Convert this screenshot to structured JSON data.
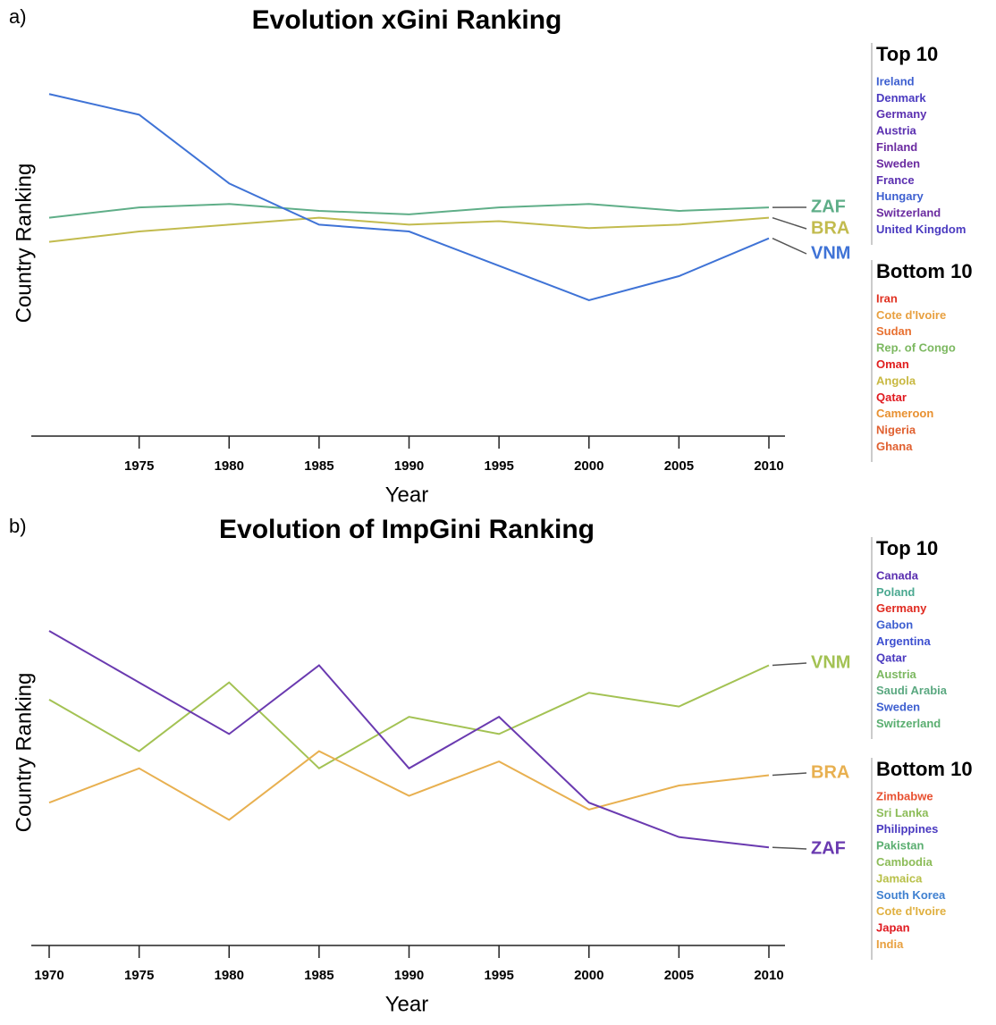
{
  "chart_data": [
    {
      "type": "line",
      "panel": "a)",
      "title": "Evolution xGini Ranking",
      "x_label": "Year",
      "y_label": "Country Ranking",
      "x": [
        1970,
        1975,
        1980,
        1985,
        1990,
        1995,
        2000,
        2005,
        2010
      ],
      "xlim": [
        1970,
        2010
      ],
      "xticks": [
        1975,
        1980,
        1985,
        1990,
        1995,
        2000,
        2005,
        2010
      ],
      "ylim": [
        110,
        1
      ],
      "series": [
        {
          "name": "ZAF",
          "color": "#5fae88",
          "values": [
            48,
            45,
            44,
            46,
            47,
            45,
            44,
            46,
            45
          ]
        },
        {
          "name": "BRA",
          "color": "#c2bb4e",
          "values": [
            55,
            52,
            50,
            48,
            50,
            49,
            51,
            50,
            48
          ]
        },
        {
          "name": "VNM",
          "color": "#3f73d6",
          "values": [
            12,
            18,
            38,
            50,
            52,
            62,
            72,
            65,
            54
          ]
        }
      ],
      "legend": [
        {
          "title": "Top 10",
          "items": [
            {
              "name": "Ireland",
              "color": "#3d5fd0"
            },
            {
              "name": "Denmark",
              "color": "#4a3ac0"
            },
            {
              "name": "Germany",
              "color": "#5a2fb0"
            },
            {
              "name": "Austria",
              "color": "#5a2fb0"
            },
            {
              "name": "Finland",
              "color": "#6a2aa0"
            },
            {
              "name": "Sweden",
              "color": "#6a2aa0"
            },
            {
              "name": "France",
              "color": "#5a2fb0"
            },
            {
              "name": "Hungary",
              "color": "#3d5fd0"
            },
            {
              "name": "Switzerland",
              "color": "#6a2aa0"
            },
            {
              "name": "United Kingdom",
              "color": "#4a3ac0"
            }
          ]
        },
        {
          "title": "Bottom 10",
          "items": [
            {
              "name": "Iran",
              "color": "#e03020"
            },
            {
              "name": "Cote d'Ivoire",
              "color": "#e8a040"
            },
            {
              "name": "Sudan",
              "color": "#e87030"
            },
            {
              "name": "Rep. of Congo",
              "color": "#7cb860"
            },
            {
              "name": "Oman",
              "color": "#e02020"
            },
            {
              "name": "Angola",
              "color": "#c8b840"
            },
            {
              "name": "Qatar",
              "color": "#e01a20"
            },
            {
              "name": "Cameroon",
              "color": "#e89030"
            },
            {
              "name": "Nigeria",
              "color": "#e06030"
            },
            {
              "name": "Ghana",
              "color": "#e06030"
            }
          ]
        }
      ]
    },
    {
      "type": "line",
      "panel": "b)",
      "title": "Evolution of ImpGini Ranking",
      "x_label": "Year",
      "y_label": "Country Ranking",
      "x": [
        1970,
        1975,
        1980,
        1985,
        1990,
        1995,
        2000,
        2005,
        2010
      ],
      "xlim": [
        1970,
        2010
      ],
      "xticks": [
        1970,
        1975,
        1980,
        1985,
        1990,
        1995,
        2000,
        2005,
        2010
      ],
      "ylim": [
        110,
        1
      ],
      "series": [
        {
          "name": "VNM",
          "color": "#a3c253",
          "values": [
            40,
            55,
            35,
            60,
            45,
            50,
            38,
            42,
            30
          ]
        },
        {
          "name": "BRA",
          "color": "#e8b050",
          "values": [
            70,
            60,
            75,
            55,
            68,
            58,
            72,
            65,
            62
          ]
        },
        {
          "name": "ZAF",
          "color": "#6a3ab0",
          "values": [
            20,
            35,
            50,
            30,
            60,
            45,
            70,
            80,
            83
          ]
        }
      ],
      "legend": [
        {
          "title": "Top 10",
          "items": [
            {
              "name": "Canada",
              "color": "#5a2fb0"
            },
            {
              "name": "Poland",
              "color": "#4aa890"
            },
            {
              "name": "Germany",
              "color": "#e02a20"
            },
            {
              "name": "Gabon",
              "color": "#3d5fd0"
            },
            {
              "name": "Argentina",
              "color": "#3d4fd0"
            },
            {
              "name": "Qatar",
              "color": "#4a3ac0"
            },
            {
              "name": "Austria",
              "color": "#7cb860"
            },
            {
              "name": "Saudi Arabia",
              "color": "#5aa880"
            },
            {
              "name": "Sweden",
              "color": "#3d5fd0"
            },
            {
              "name": "Switzerland",
              "color": "#5aae70"
            }
          ]
        },
        {
          "title": "Bottom 10",
          "items": [
            {
              "name": "Zimbabwe",
              "color": "#e85030"
            },
            {
              "name": "Sri Lanka",
              "color": "#8cbc58"
            },
            {
              "name": "Philippines",
              "color": "#4a3ac0"
            },
            {
              "name": "Pakistan",
              "color": "#5aae70"
            },
            {
              "name": "Cambodia",
              "color": "#8cbc58"
            },
            {
              "name": "Jamaica",
              "color": "#b8c048"
            },
            {
              "name": "South Korea",
              "color": "#3f80d0"
            },
            {
              "name": "Cote d'Ivoire",
              "color": "#e0b040"
            },
            {
              "name": "Japan",
              "color": "#e01a20"
            },
            {
              "name": "India",
              "color": "#e8a040"
            }
          ]
        }
      ]
    }
  ]
}
